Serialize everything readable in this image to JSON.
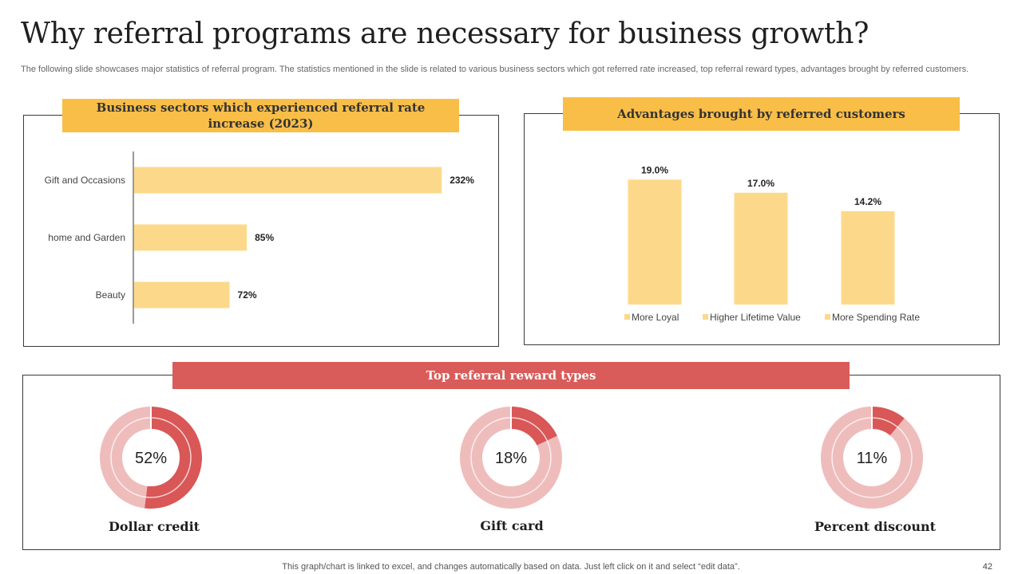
{
  "slide": {
    "title": "Why referral programs are necessary for business growth?",
    "subtitle": "The following slide showcases major statistics of referral program. The statistics mentioned in the slide is related to various business sectors which got referred rate increased, top referral reward types, advantages brought by referred customers.",
    "footer": "This graph/chart is linked to excel,  and changes automatically based on data. Just left click on it and select “edit data”.",
    "page_number": "42"
  },
  "colors": {
    "bar_fill": "#fcd98a",
    "header_yellow": "#f9be48",
    "header_red": "#d95c5a",
    "donut_dark": "#d95757",
    "donut_light": "#efbcbc"
  },
  "sectors_panel": {
    "header": "Business sectors which experienced referral rate increase (2023)"
  },
  "advantages_panel": {
    "header": "Advantages brought by referred customers"
  },
  "rewards_panel": {
    "header": "Top referral reward types"
  },
  "chart_data": [
    {
      "type": "bar",
      "orientation": "horizontal",
      "title": "Business sectors which experienced referral rate increase (2023)",
      "categories": [
        "Gift and Occasions",
        "home and Garden",
        "Beauty"
      ],
      "values": [
        232,
        85,
        72
      ],
      "value_labels": [
        "232%",
        "85%",
        "72%"
      ],
      "xlim": [
        0,
        265
      ]
    },
    {
      "type": "bar",
      "title": "Advantages brought by referred customers",
      "categories": [
        "More Loyal",
        "Higher Lifetime Value",
        "More Spending Rate"
      ],
      "values": [
        19.0,
        17.0,
        14.2
      ],
      "value_labels": [
        "19.0%",
        "17.0%",
        "14.2%"
      ],
      "legend": [
        "More Loyal",
        "Higher Lifetime Value",
        "More Spending Rate"
      ],
      "legend_position": "bottom",
      "ylim": [
        0,
        20
      ]
    },
    {
      "type": "pie",
      "variant": "donut",
      "title": "Top referral reward types",
      "items": [
        {
          "name": "Dollar credit",
          "value": 52,
          "label": "52%"
        },
        {
          "name": "Gift card",
          "value": 18,
          "label": "18%"
        },
        {
          "name": "Percent discount",
          "value": 11,
          "label": "11%"
        }
      ]
    }
  ]
}
